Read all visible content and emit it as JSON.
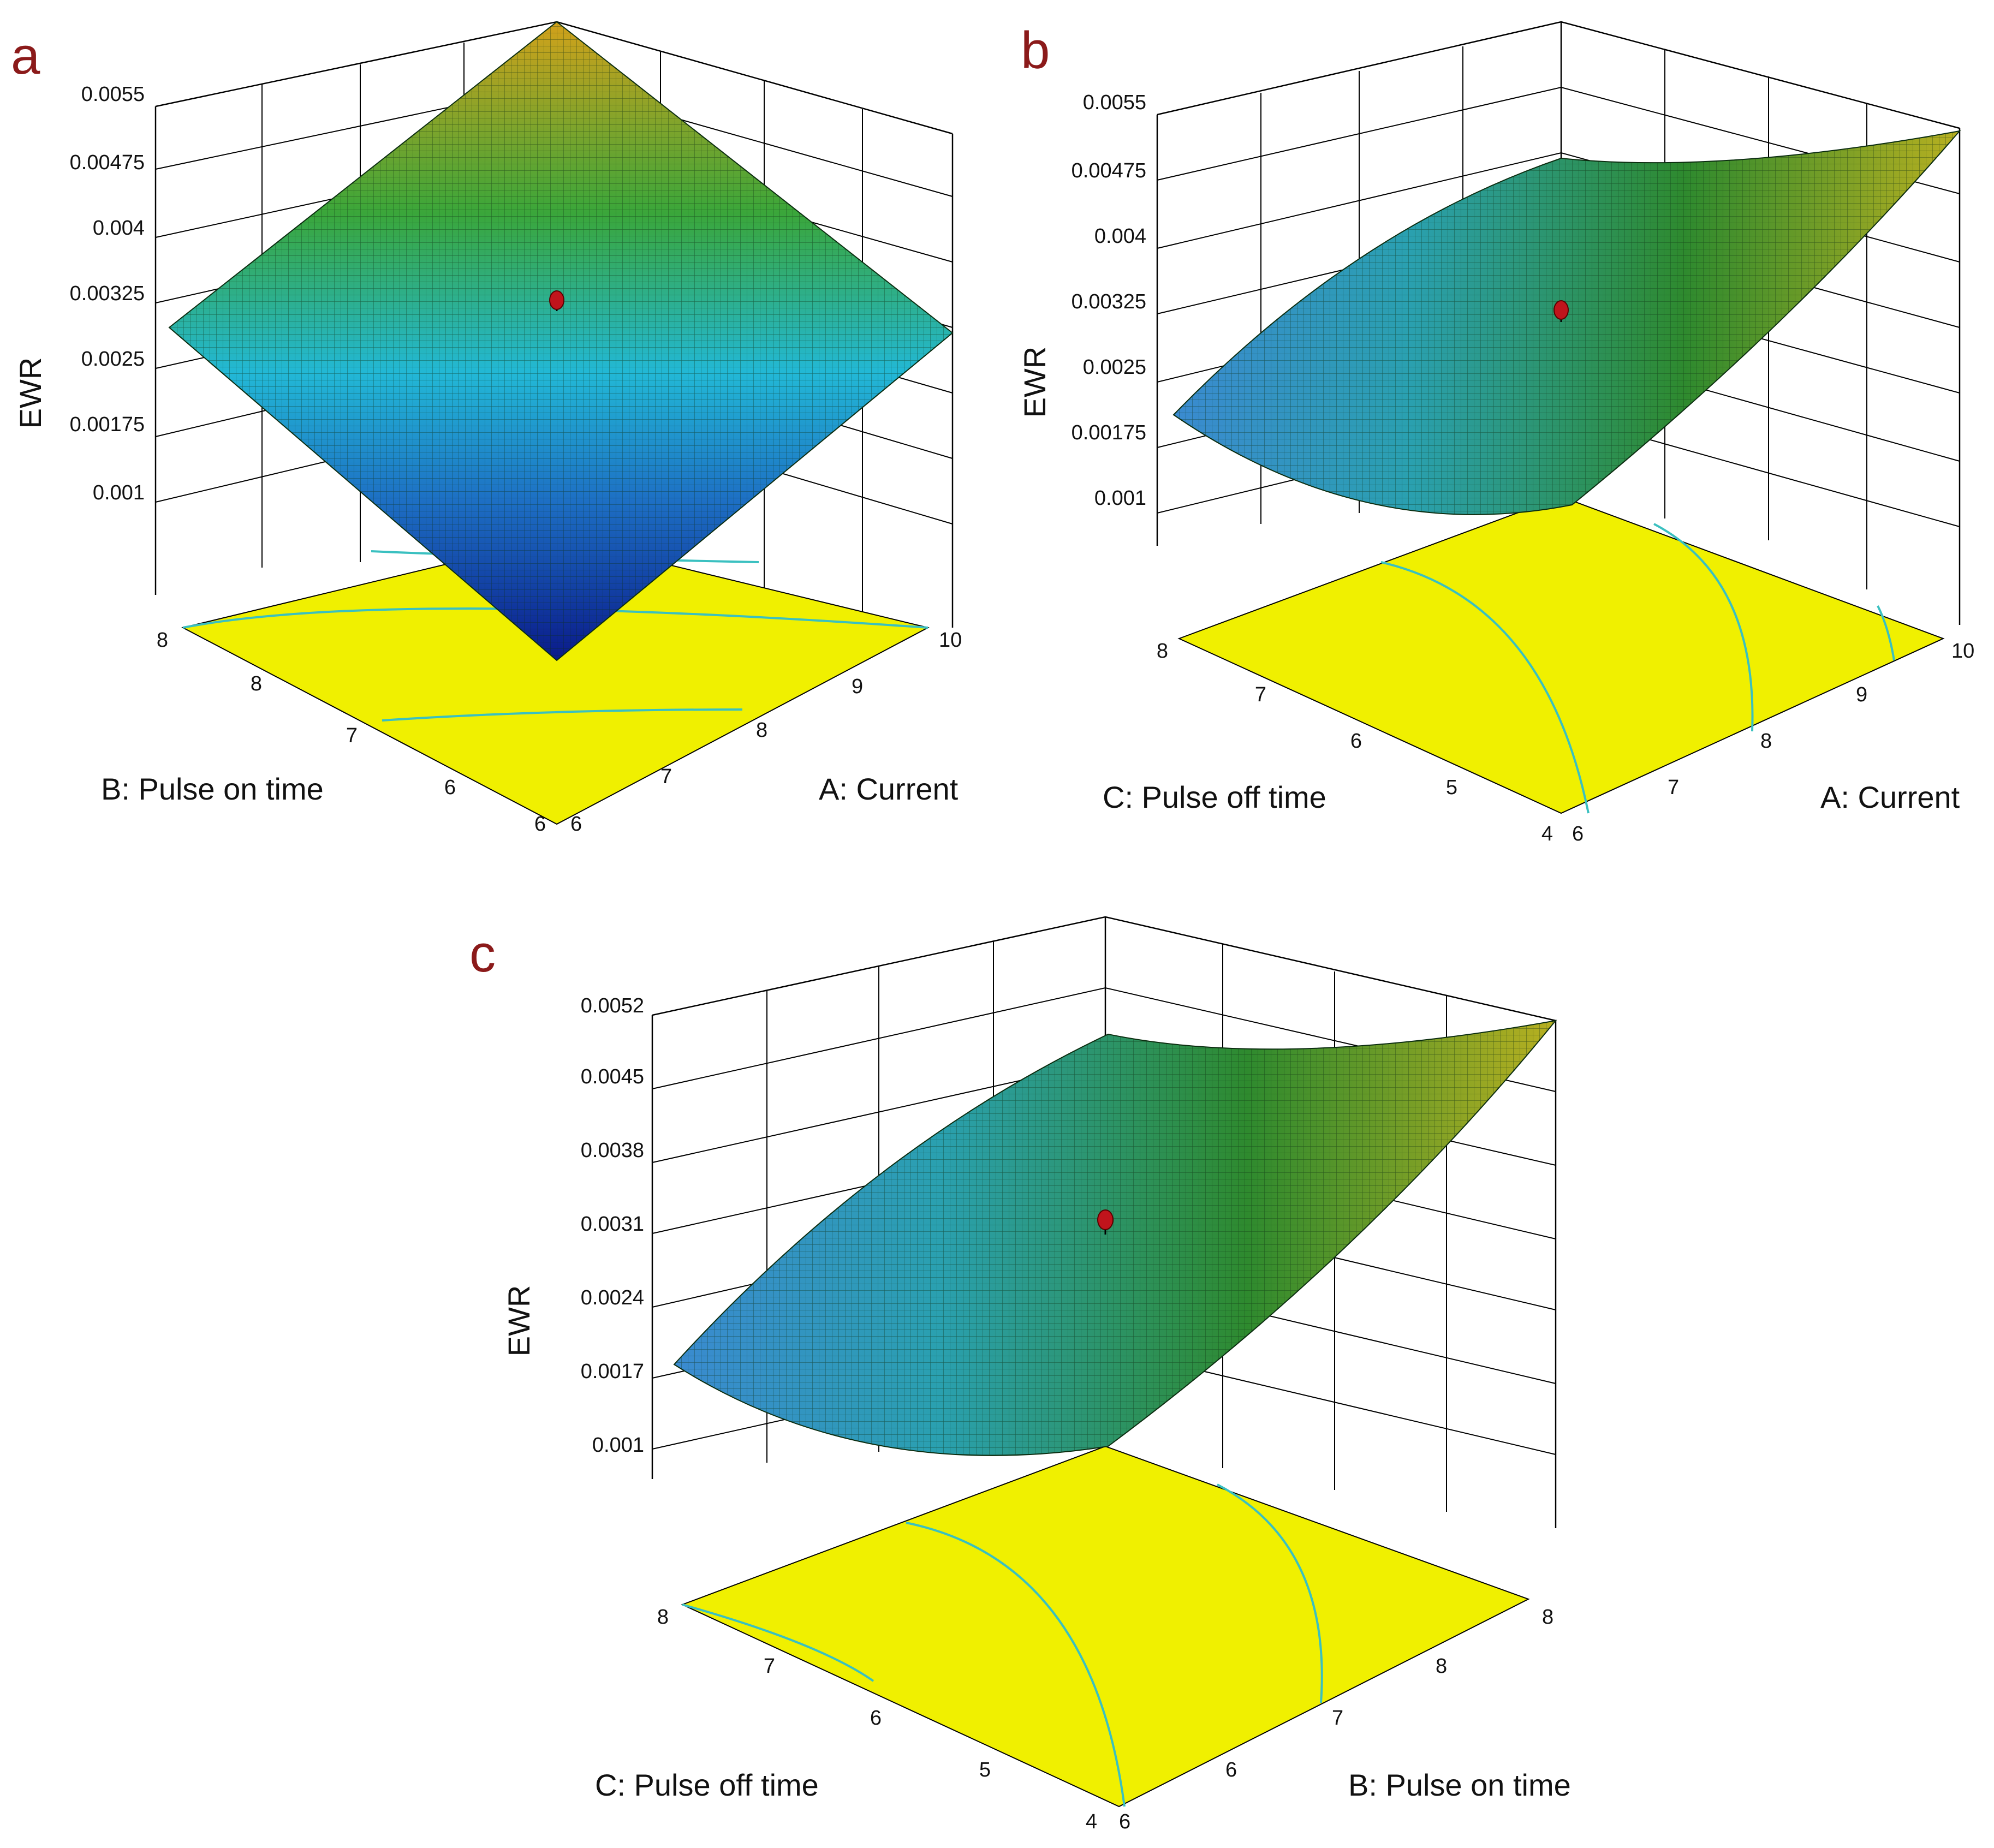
{
  "figure": {
    "panels": [
      "a",
      "b",
      "c"
    ]
  },
  "chart_data": [
    {
      "type": "surface3d",
      "panel": "a",
      "zlabel": "EWR",
      "xlabel": "A: Current",
      "ylabel": "B: Pulse on time",
      "x_ticks": [
        "6",
        "7",
        "8",
        "9",
        "10"
      ],
      "y_ticks": [
        "6",
        "7",
        "8",
        "8"
      ],
      "z_ticks": [
        "0.001",
        "0.00175",
        "0.0025",
        "0.00325",
        "0.004",
        "0.00475",
        "0.0055"
      ],
      "xlim": [
        6,
        10
      ],
      "ylim": [
        6,
        8
      ],
      "zlim": [
        0.001,
        0.0055
      ],
      "corners": [
        {
          "x": 6,
          "y": 6,
          "z": 0.0004
        },
        {
          "x": 10,
          "y": 6,
          "z": 0.0029
        },
        {
          "x": 10,
          "y": 8,
          "z": 0.0057
        },
        {
          "x": 6,
          "y": 8,
          "z": 0.0028
        }
      ],
      "center_point": {
        "x": 8,
        "y": 7,
        "z": 0.0031
      }
    },
    {
      "type": "surface3d",
      "panel": "b",
      "zlabel": "EWR",
      "xlabel": "A: Current",
      "ylabel": "C: Pulse off time",
      "x_ticks": [
        "6",
        "7",
        "8",
        "9",
        "10"
      ],
      "y_ticks": [
        "4",
        "5",
        "6",
        "7",
        "8"
      ],
      "z_ticks": [
        "0.001",
        "0.00175",
        "0.0025",
        "0.00325",
        "0.004",
        "0.00475",
        "0.0055"
      ],
      "xlim": [
        6,
        10
      ],
      "ylim": [
        4,
        8
      ],
      "zlim": [
        0.001,
        0.0055
      ],
      "corners": [
        {
          "x": 6,
          "y": 4,
          "z": 0.0009
        },
        {
          "x": 10,
          "y": 4,
          "z": 0.0032
        },
        {
          "x": 10,
          "y": 8,
          "z": 0.0055
        },
        {
          "x": 6,
          "y": 8,
          "z": 0.0021
        }
      ],
      "center_point": {
        "x": 8,
        "y": 6,
        "z": 0.0029
      }
    },
    {
      "type": "surface3d",
      "panel": "c",
      "zlabel": "EWR",
      "xlabel": "B: Pulse on time",
      "ylabel": "C: Pulse off time",
      "x_ticks": [
        "6",
        "6",
        "7",
        "8",
        "8"
      ],
      "y_ticks": [
        "4",
        "5",
        "6",
        "7",
        "8"
      ],
      "z_ticks": [
        "0.001",
        "0.0017",
        "0.0024",
        "0.0031",
        "0.0038",
        "0.0045",
        "0.0052"
      ],
      "xlim": [
        6,
        8
      ],
      "ylim": [
        4,
        8
      ],
      "zlim": [
        0.001,
        0.0052
      ],
      "corners": [
        {
          "x": 6,
          "y": 4,
          "z": 0.0009
        },
        {
          "x": 8,
          "y": 4,
          "z": 0.0029
        },
        {
          "x": 8,
          "y": 8,
          "z": 0.0052
        },
        {
          "x": 6,
          "y": 8,
          "z": 0.0018
        }
      ],
      "center_point": {
        "x": 7,
        "y": 6,
        "z": 0.0029
      }
    }
  ]
}
